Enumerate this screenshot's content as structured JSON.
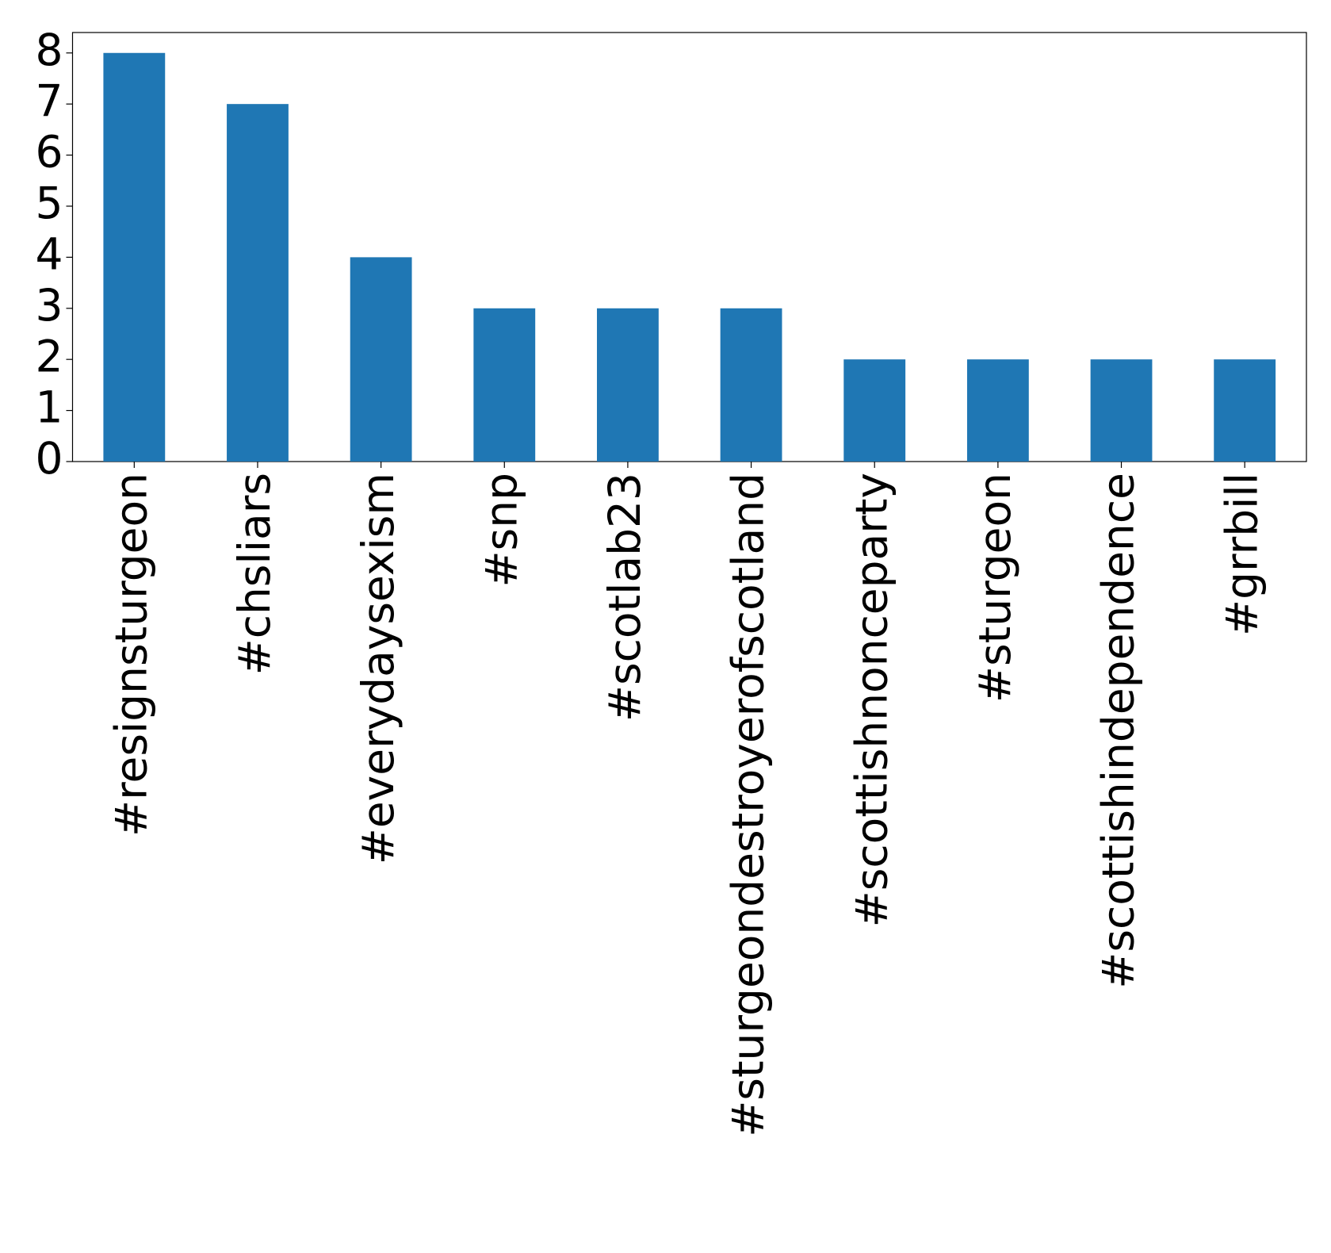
{
  "chart_data": {
    "type": "bar",
    "categories": [
      "#resignsturgeon",
      "#chsliars",
      "#everydaysexism",
      "#snp",
      "#scotlab23",
      "#sturgeondestroyerofscotland",
      "#scottishnonceparty",
      "#sturgeon",
      "#scottishindependence",
      "#grrbill"
    ],
    "values": [
      8,
      7,
      4,
      3,
      3,
      3,
      2,
      2,
      2,
      2
    ],
    "color": "#1f77b4",
    "ylim": [
      0,
      8.4
    ],
    "yticks": [
      0,
      1,
      2,
      3,
      4,
      5,
      6,
      7,
      8
    ],
    "grid": false
  }
}
